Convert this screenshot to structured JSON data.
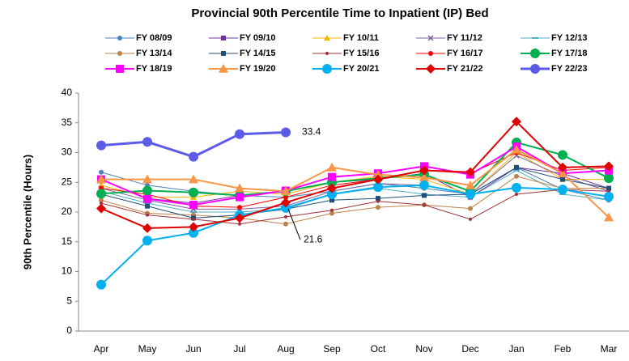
{
  "chart_data": {
    "type": "line",
    "title": "Provincial 90th Percentile Time to Inpatient (IP) Bed",
    "y_label": "90th Percentile (Hours)",
    "categories": [
      "Apr",
      "May",
      "Jun",
      "Jul",
      "Aug",
      "Sep",
      "Oct",
      "Nov",
      "Dec",
      "Jan",
      "Feb",
      "Mar"
    ],
    "ylim": [
      0,
      40
    ],
    "yticks": [
      0,
      5,
      10,
      15,
      20,
      25,
      30,
      35,
      40
    ],
    "grid": false,
    "series": [
      {
        "name": "FY 08/09",
        "color": "#4f81bd",
        "marker": "circle",
        "marker_size": 3,
        "line_width": 1,
        "values": [
          26.7,
          24.5,
          23.5,
          22.8,
          22.5,
          23.5,
          24.8,
          24,
          23,
          27.5,
          23.8,
          22
        ]
      },
      {
        "name": "FY 09/10",
        "color": "#7030a0",
        "marker": "square",
        "marker_size": 3,
        "line_width": 1,
        "values": [
          25.5,
          22.3,
          21.5,
          22.8,
          23.5,
          25,
          25.5,
          26.5,
          22.5,
          27.5,
          26.5,
          24
        ]
      },
      {
        "name": "FY 10/11",
        "color": "#f2b600",
        "marker": "triangle",
        "marker_size": 4,
        "line_width": 1,
        "values": [
          24.5,
          22.5,
          22.5,
          23.5,
          23,
          25,
          26,
          25.5,
          23,
          30,
          25.5,
          25.5
        ]
      },
      {
        "name": "FY 11/12",
        "color": "#7f5fa0",
        "marker": "x",
        "marker_size": 3,
        "line_width": 1,
        "values": [
          24,
          22,
          20.5,
          20.5,
          21,
          23.5,
          24.8,
          24.5,
          23,
          29.5,
          26,
          23.5
        ]
      },
      {
        "name": "FY 12/13",
        "color": "#4bacc6",
        "marker": "dash",
        "marker_size": 4,
        "line_width": 1,
        "values": [
          23.5,
          21.5,
          20,
          20,
          20.5,
          23,
          24,
          23,
          22.5,
          27,
          23,
          22
        ]
      },
      {
        "name": "FY 13/14",
        "color": "#c0804a",
        "marker": "circle",
        "marker_size": 3,
        "line_width": 1,
        "values": [
          22,
          19.8,
          19.5,
          19,
          18,
          19.8,
          20.8,
          21.2,
          20.6,
          26,
          24,
          24
        ]
      },
      {
        "name": "FY 14/15",
        "color": "#1f4e79",
        "marker": "square",
        "marker_size": 3,
        "line_width": 1,
        "values": [
          23,
          21,
          19,
          19.5,
          20.5,
          22,
          22.3,
          22.8,
          23,
          27.5,
          25.5,
          24
        ]
      },
      {
        "name": "FY 15/16",
        "color": "#a0303a",
        "marker": "circle",
        "marker_size": 2,
        "line_width": 1,
        "values": [
          21.5,
          19.5,
          18.8,
          18,
          19.2,
          20.3,
          21.8,
          21.2,
          18.8,
          23,
          23.8,
          23.5
        ]
      },
      {
        "name": "FY 16/17",
        "color": "#ff0000",
        "marker": "circle",
        "marker_size": 3,
        "line_width": 1,
        "values": [
          24,
          23,
          21,
          20.8,
          22.5,
          24.5,
          25.5,
          27,
          26.5,
          30,
          27,
          27.5
        ]
      },
      {
        "name": "FY 17/18",
        "color": "#00b050",
        "marker": "circle",
        "marker_size": 6,
        "line_width": 2,
        "values": [
          23.1,
          23.6,
          23.3,
          22.8,
          23.5,
          25,
          25.7,
          26.3,
          23.5,
          31.7,
          29.6,
          25.7
        ]
      },
      {
        "name": "FY 18/19",
        "color": "#ff00ff",
        "marker": "square",
        "marker_size": 5,
        "line_width": 2,
        "values": [
          25.5,
          22.2,
          21.2,
          22.5,
          23.6,
          25.9,
          26.5,
          27.7,
          26.3,
          31,
          26.5,
          27
        ]
      },
      {
        "name": "FY 19/20",
        "color": "#f79646",
        "marker": "triangle",
        "marker_size": 6,
        "line_width": 2,
        "values": [
          25.5,
          25.5,
          25.5,
          24,
          23.5,
          27.5,
          26.3,
          25.8,
          24.5,
          30.5,
          26.5,
          19.1
        ]
      },
      {
        "name": "FY 20/21",
        "color": "#00b0f0",
        "marker": "circle",
        "marker_size": 6,
        "line_width": 2,
        "values": [
          7.8,
          15.2,
          16.5,
          19.5,
          20.7,
          23,
          24.2,
          24.5,
          23,
          24.1,
          23.8,
          22.6
        ]
      },
      {
        "name": "FY 21/22",
        "color": "#e00000",
        "marker": "diamond",
        "marker_size": 6,
        "line_width": 2,
        "values": [
          20.6,
          17.3,
          17.5,
          19,
          21.6,
          24,
          25.5,
          27,
          26.7,
          35.2,
          27.5,
          27.7
        ],
        "value_labels": [
          null,
          null,
          null,
          null,
          "21.6",
          null,
          null,
          null,
          null,
          null,
          null,
          null
        ]
      },
      {
        "name": "FY 22/23",
        "color": "#5b5be8",
        "marker": "circle",
        "marker_size": 6,
        "line_width": 3,
        "values": [
          31.2,
          31.8,
          29.3,
          33.1,
          33.4,
          null,
          null,
          null,
          null,
          null,
          null,
          null
        ],
        "value_labels": [
          null,
          null,
          null,
          null,
          "33.4",
          null,
          null,
          null,
          null,
          null,
          null,
          null
        ]
      }
    ]
  }
}
